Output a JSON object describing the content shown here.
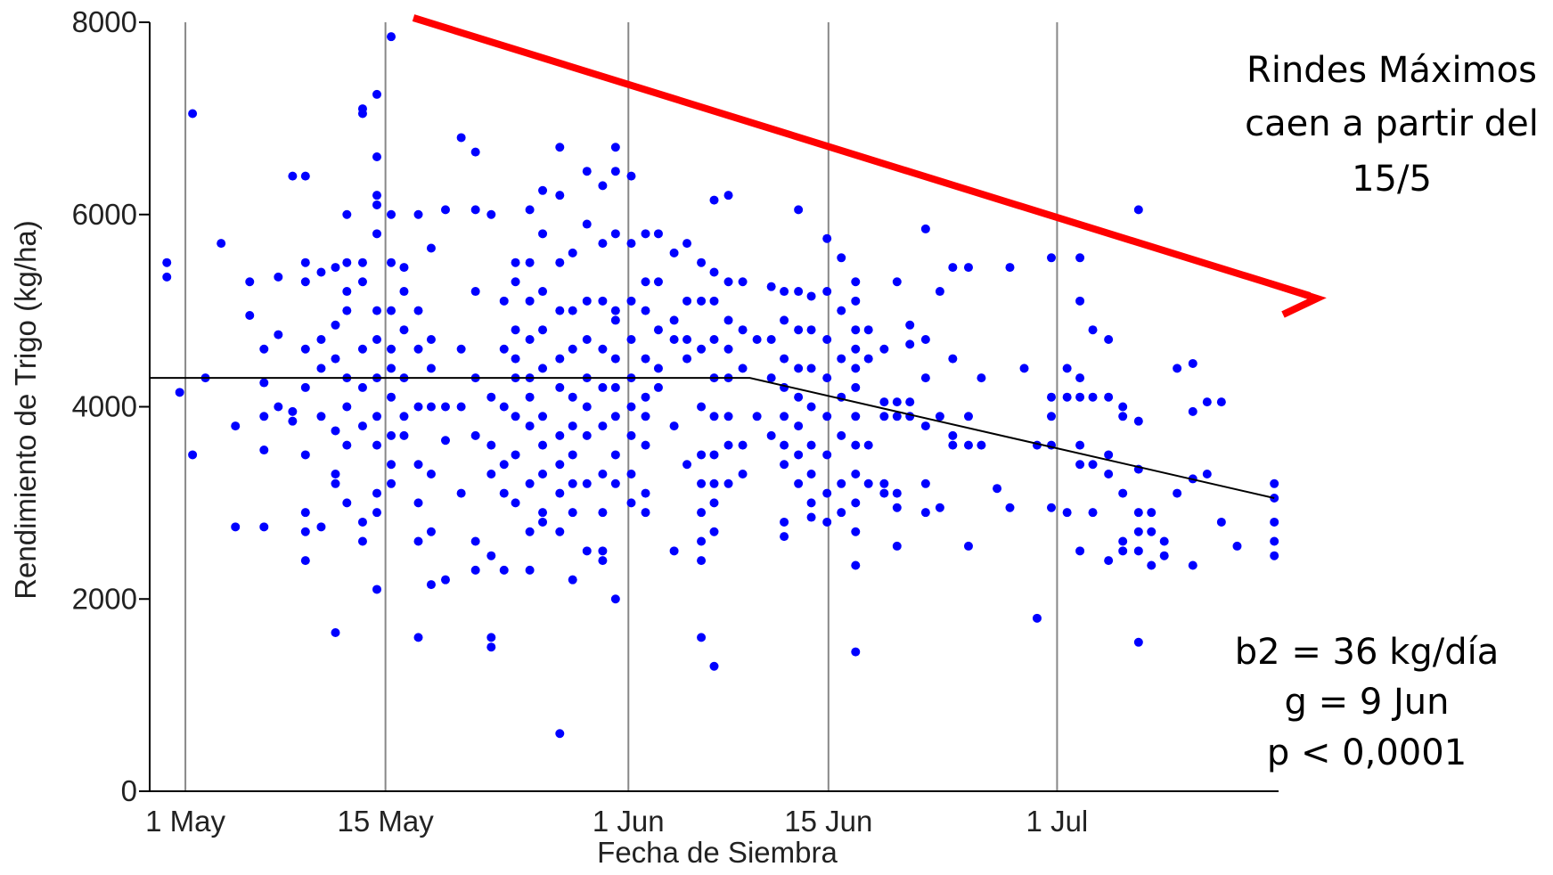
{
  "chart_data": {
    "type": "scatter",
    "xlabel": "Fecha de Siembra",
    "ylabel": "Rendimiento de Trigo (kg/ha)",
    "xlim": [
      118.5,
      197.5
    ],
    "ylim": [
      0,
      8000
    ],
    "xticks": [
      {
        "value": 121,
        "label": "1 May"
      },
      {
        "value": 135,
        "label": "15 May"
      },
      {
        "value": 152,
        "label": "1 Jun"
      },
      {
        "value": 166,
        "label": "15 Jun"
      },
      {
        "value": 182,
        "label": "1 Jul"
      }
    ],
    "yticks": [
      0,
      2000,
      4000,
      6000,
      8000
    ],
    "grid": true,
    "color": "#0000ff",
    "x": [
      119.7,
      119.7,
      120.6,
      121.5,
      121.5,
      122.4,
      123.5,
      124.5,
      124.5,
      125.5,
      125.5,
      126.5,
      126.5,
      126.5,
      126.5,
      126.5,
      127.5,
      127.5,
      127.5,
      128.5,
      128.5,
      128.5,
      129.4,
      129.4,
      129.4,
      129.4,
      129.4,
      129.4,
      129.4,
      129.4,
      129.4,
      130.5,
      130.5,
      130.5,
      130.5,
      130.5,
      131.5,
      131.5,
      131.5,
      131.5,
      131.5,
      131.5,
      131.5,
      132.3,
      132.3,
      132.3,
      132.3,
      132.3,
      132.3,
      132.3,
      132.3,
      133.4,
      133.4,
      133.4,
      133.4,
      133.4,
      133.4,
      133.4,
      133.4,
      133.4,
      134.4,
      134.4,
      134.4,
      134.4,
      134.4,
      134.4,
      134.4,
      134.4,
      134.4,
      134.4,
      134.4,
      134.4,
      134.4,
      135.4,
      135.4,
      135.4,
      135.4,
      135.4,
      135.4,
      135.4,
      135.4,
      135.4,
      135.4,
      136.3,
      136.3,
      136.3,
      136.3,
      136.3,
      136.3,
      137.3,
      137.3,
      137.3,
      137.3,
      137.3,
      137.3,
      137.3,
      137.3,
      138.2,
      138.2,
      138.2,
      138.2,
      138.2,
      138.2,
      138.2,
      139.2,
      139.2,
      139.2,
      139.2,
      140.3,
      140.3,
      140.3,
      140.3,
      141.3,
      141.3,
      141.3,
      141.3,
      141.3,
      141.3,
      141.3,
      142.4,
      142.4,
      142.4,
      142.4,
      142.4,
      142.4,
      142.4,
      143.3,
      143.3,
      143.3,
      143.3,
      143.3,
      143.3,
      144.1,
      144.1,
      144.1,
      144.1,
      144.1,
      144.1,
      144.1,
      144.1,
      145.1,
      145.1,
      145.1,
      145.1,
      145.1,
      145.1,
      145.1,
      145.1,
      145.1,
      145.1,
      146,
      146,
      146,
      146,
      146,
      146,
      146,
      146,
      146,
      146,
      147.2,
      147.2,
      147.2,
      147.2,
      147.2,
      147.2,
      147.2,
      147.2,
      147.2,
      147.2,
      147.2,
      148.1,
      148.1,
      148.1,
      148.1,
      148.1,
      148.1,
      148.1,
      148.1,
      148.1,
      149.1,
      149.1,
      149.1,
      149.1,
      149.1,
      149.1,
      149.1,
      149.1,
      149.1,
      150.2,
      150.2,
      150.2,
      150.2,
      150.2,
      150.2,
      150.2,
      150.2,
      150.2,
      150.2,
      151.1,
      151.1,
      151.1,
      151.1,
      151.1,
      151.1,
      151.1,
      151.1,
      151.1,
      151.1,
      151.1,
      152.2,
      152.2,
      152.2,
      152.2,
      152.2,
      152.2,
      152.2,
      152.2,
      152.2,
      153.2,
      153.2,
      153.2,
      153.2,
      153.2,
      153.2,
      153.2,
      153.2,
      153.2,
      154.1,
      154.1,
      154.1,
      154.1,
      154.1,
      155.2,
      155.2,
      155.2,
      155.2,
      155.2,
      156.1,
      156.1,
      156.1,
      156.1,
      156.1,
      157.1,
      157.1,
      157.1,
      157.1,
      157.1,
      157.1,
      157.1,
      157.1,
      157.1,
      157.1,
      158,
      158,
      158,
      158,
      158,
      158,
      158,
      158,
      158,
      158,
      158,
      159,
      159,
      159,
      159,
      159,
      159,
      159,
      159,
      160,
      160,
      160,
      160,
      160,
      161,
      161,
      162,
      162,
      162,
      162,
      162.9,
      162.9,
      162.9,
      162.9,
      162.9,
      162.9,
      162.9,
      162.9,
      162.9,
      163.9,
      163.9,
      163.9,
      163.9,
      163.9,
      163.9,
      163.9,
      163.9,
      164.8,
      164.8,
      164.8,
      164.8,
      164.8,
      164.8,
      164.8,
      164.8,
      165.9,
      165.9,
      165.9,
      165.9,
      165.9,
      165.9,
      165.9,
      165.9,
      166.9,
      166.9,
      166.9,
      166.9,
      166.9,
      166.9,
      166.9,
      167.9,
      167.9,
      167.9,
      167.9,
      167.9,
      167.9,
      167.9,
      167.9,
      167.9,
      167.9,
      167.9,
      167.9,
      167.9,
      168.8,
      168.8,
      168.8,
      168.8,
      169.9,
      169.9,
      169.9,
      169.9,
      169.9,
      170.8,
      170.8,
      170.8,
      170.8,
      170.8,
      170.8,
      171.7,
      171.7,
      171.7,
      171.7,
      172.8,
      172.8,
      172.8,
      172.8,
      172.8,
      172.8,
      173.8,
      173.8,
      173.8,
      174.7,
      174.7,
      174.7,
      174.7,
      175.8,
      175.8,
      175.8,
      175.8,
      176.7,
      176.7,
      177.8,
      178.7,
      178.7,
      179.7,
      180.6,
      180.6,
      181.6,
      181.6,
      181.6,
      181.6,
      181.6,
      182.7,
      182.7,
      182.7,
      183.6,
      183.6,
      183.6,
      183.6,
      183.6,
      183.6,
      183.6,
      184.5,
      184.5,
      184.5,
      184.5,
      185.6,
      185.6,
      185.6,
      185.6,
      185.6,
      186.6,
      186.6,
      186.6,
      186.6,
      186.6,
      187.7,
      187.7,
      187.7,
      187.7,
      187.7,
      187.7,
      187.7,
      188.6,
      188.6,
      188.6,
      189.5,
      189.5,
      190.4,
      190.4,
      191.5,
      191.5,
      191.5,
      191.5,
      192.5,
      192.5,
      193.5,
      193.5,
      194.6,
      197.2,
      197.2,
      197.2,
      197.2,
      197.2
    ],
    "values": [
      5500,
      5350,
      4150,
      7050,
      3500,
      4300,
      5700,
      3800,
      2750,
      5300,
      4950,
      4600,
      4250,
      3900,
      3550,
      2750,
      5350,
      4750,
      4000,
      6400,
      3950,
      3850,
      6400,
      5500,
      5300,
      4600,
      4200,
      3500,
      2900,
      2700,
      2400,
      5400,
      4700,
      4400,
      3900,
      2750,
      5450,
      4850,
      4500,
      3750,
      3300,
      3200,
      1650,
      6000,
      5500,
      5200,
      5000,
      4300,
      4000,
      3600,
      3000,
      7100,
      7050,
      5500,
      5300,
      4600,
      4200,
      3800,
      2800,
      2600,
      7250,
      6600,
      6200,
      6100,
      5800,
      5000,
      4700,
      4300,
      3900,
      3600,
      3100,
      2900,
      2100,
      7850,
      6000,
      5500,
      5000,
      4600,
      4400,
      4100,
      3700,
      3400,
      3200,
      5450,
      5200,
      4800,
      4300,
      3900,
      3700,
      6000,
      5000,
      4600,
      4000,
      3400,
      3000,
      2600,
      1600,
      5650,
      4700,
      4400,
      4000,
      3300,
      2700,
      2150,
      6050,
      4000,
      3650,
      2200,
      6800,
      4600,
      4000,
      3100,
      6650,
      6050,
      5200,
      4300,
      3700,
      2600,
      2300,
      6000,
      4100,
      3600,
      3300,
      2450,
      1600,
      1500,
      5100,
      4600,
      4000,
      3400,
      3100,
      2300,
      5500,
      5300,
      4800,
      4500,
      4300,
      3900,
      3500,
      3000,
      6050,
      5500,
      5100,
      4700,
      4300,
      4100,
      3800,
      3200,
      2700,
      2300,
      6250,
      5800,
      5200,
      4800,
      4400,
      3900,
      3600,
      3300,
      2900,
      2800,
      6700,
      6200,
      5500,
      5000,
      4500,
      4200,
      3700,
      3400,
      3100,
      2700,
      600,
      5600,
      5000,
      4600,
      4100,
      3800,
      3500,
      3200,
      2900,
      2200,
      6450,
      5900,
      5100,
      4700,
      4300,
      4000,
      3700,
      3200,
      2500,
      6300,
      5700,
      5100,
      4600,
      4200,
      3800,
      3300,
      2900,
      2500,
      2400,
      6700,
      6450,
      5800,
      5000,
      4900,
      4500,
      4200,
      3900,
      3500,
      3200,
      2000,
      6400,
      5700,
      5100,
      4700,
      4300,
      4000,
      3700,
      3300,
      3000,
      5800,
      5300,
      5000,
      4500,
      4100,
      3900,
      3600,
      3100,
      2900,
      5800,
      5300,
      4800,
      4400,
      4200,
      5600,
      4900,
      4700,
      3800,
      2500,
      5700,
      5100,
      4700,
      4500,
      3400,
      5500,
      5100,
      4600,
      4000,
      3500,
      3200,
      2900,
      2600,
      2400,
      1600,
      6150,
      5400,
      5100,
      4700,
      4300,
      3900,
      3500,
      3200,
      3000,
      2700,
      1300,
      6200,
      5300,
      4900,
      4600,
      4300,
      3900,
      3600,
      3200,
      5300,
      4800,
      4400,
      3600,
      3300,
      4700,
      3900,
      5250,
      4700,
      4300,
      3700,
      5200,
      4900,
      4500,
      4200,
      3900,
      3600,
      3400,
      2800,
      2650,
      6050,
      5200,
      4800,
      4400,
      4100,
      3800,
      3500,
      3200,
      5150,
      4800,
      4400,
      4000,
      3600,
      3300,
      3000,
      2850,
      5750,
      5200,
      4700,
      4300,
      3900,
      3500,
      3100,
      2800,
      5550,
      5000,
      4500,
      4100,
      3700,
      3200,
      2900,
      5300,
      5100,
      4800,
      4600,
      4400,
      4200,
      3900,
      3600,
      3300,
      3000,
      2700,
      2350,
      1450,
      4800,
      4500,
      3600,
      3200,
      4600,
      4050,
      3900,
      3200,
      3100,
      5300,
      4050,
      3900,
      3100,
      2950,
      2550,
      4850,
      4650,
      4050,
      3900,
      5850,
      4700,
      4300,
      3800,
      3200,
      2900,
      5200,
      3900,
      2950,
      5450,
      4500,
      3700,
      3600,
      5450,
      3900,
      3600,
      2550,
      4300,
      3600,
      3150,
      5450,
      2950,
      4400,
      3600,
      1800,
      5550,
      4100,
      3900,
      3600,
      2950,
      4400,
      4100,
      2900,
      5550,
      5100,
      4300,
      4100,
      3600,
      3400,
      2500,
      4800,
      4100,
      3400,
      2900,
      4700,
      4100,
      3500,
      3300,
      2400,
      4000,
      3900,
      3100,
      2600,
      2500,
      6050,
      3850,
      3350,
      2900,
      2700,
      2500,
      1550,
      2900,
      2700,
      2350,
      2600,
      2450,
      4400,
      3100,
      4450,
      3950,
      3250,
      2350,
      4050,
      3300,
      4050,
      2800,
      2550,
      3200,
      3050,
      2800,
      2600,
      2450
    ],
    "trend": {
      "x": [
        118.5,
        160.5,
        197.2
      ],
      "values": [
        4300,
        4300,
        3050
      ],
      "color": "#000000"
    },
    "annotations": [
      {
        "lines": [
          "Rindes Máximos",
          "caen a partir del",
          "15/5"
        ]
      },
      {
        "lines": [
          "b2 = 36 kg/día",
          "g = 9 Jun",
          "p < 0,0001"
        ]
      }
    ]
  }
}
